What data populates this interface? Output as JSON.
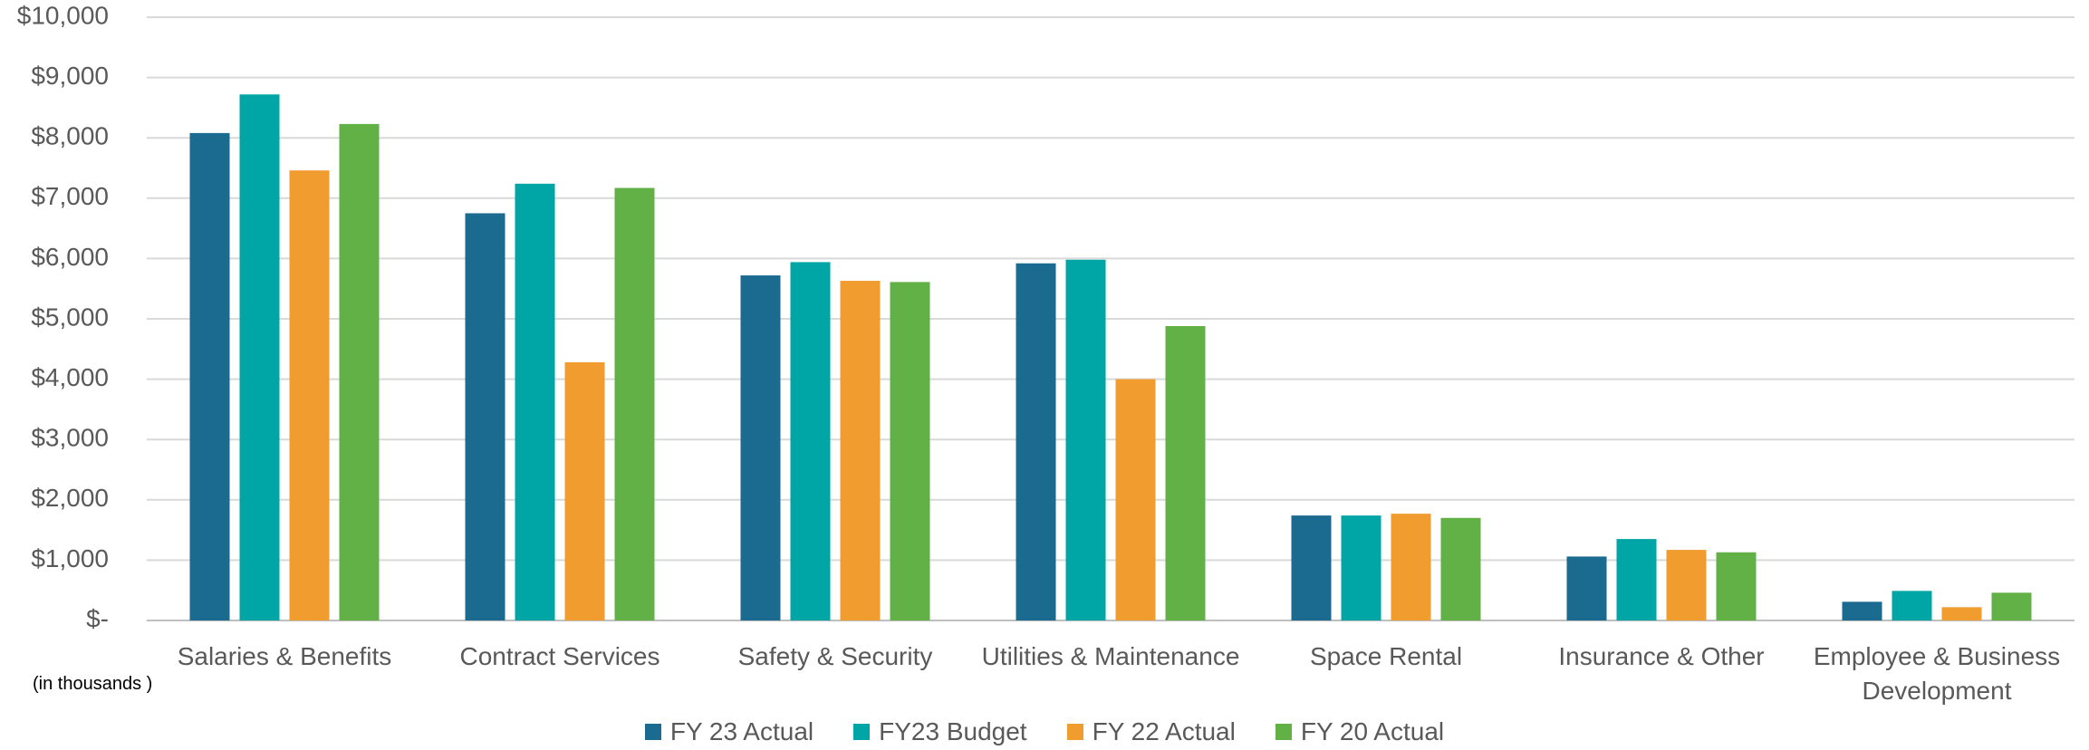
{
  "chart_data": {
    "type": "bar",
    "categories": [
      "Salaries & Benefits",
      "Contract Services",
      "Safety & Security",
      "Utilities & Maintenance",
      "Space Rental",
      "Insurance & Other",
      "Employee & Business Development"
    ],
    "series": [
      {
        "name": "FY 23 Actual",
        "color": "#1b6a8f",
        "values": [
          8080,
          6750,
          5720,
          5920,
          1740,
          1060,
          310
        ]
      },
      {
        "name": "FY23 Budget",
        "color": "#00a6a6",
        "values": [
          8720,
          7240,
          5940,
          5980,
          1740,
          1350,
          490
        ]
      },
      {
        "name": "FY 22 Actual",
        "color": "#f09c2f",
        "values": [
          7460,
          4280,
          5630,
          4000,
          1770,
          1170,
          220
        ]
      },
      {
        "name": "FY 20 Actual",
        "color": "#62b146",
        "values": [
          8230,
          7170,
          5610,
          4880,
          1700,
          1130,
          460
        ]
      }
    ],
    "ylim": [
      0,
      10000
    ],
    "yticks": [
      {
        "value": 0,
        "label": "$-"
      },
      {
        "value": 1000,
        "label": "$1,000"
      },
      {
        "value": 2000,
        "label": "$2,000"
      },
      {
        "value": 3000,
        "label": "$3,000"
      },
      {
        "value": 4000,
        "label": "$4,000"
      },
      {
        "value": 5000,
        "label": "$5,000"
      },
      {
        "value": 6000,
        "label": "$6,000"
      },
      {
        "value": 7000,
        "label": "$7,000"
      },
      {
        "value": 8000,
        "label": "$8,000"
      },
      {
        "value": 9000,
        "label": "$9,000"
      },
      {
        "value": 10000,
        "label": "$10,000"
      }
    ],
    "grid": true,
    "annotation": "(in thousands )",
    "legend": "bottom"
  }
}
